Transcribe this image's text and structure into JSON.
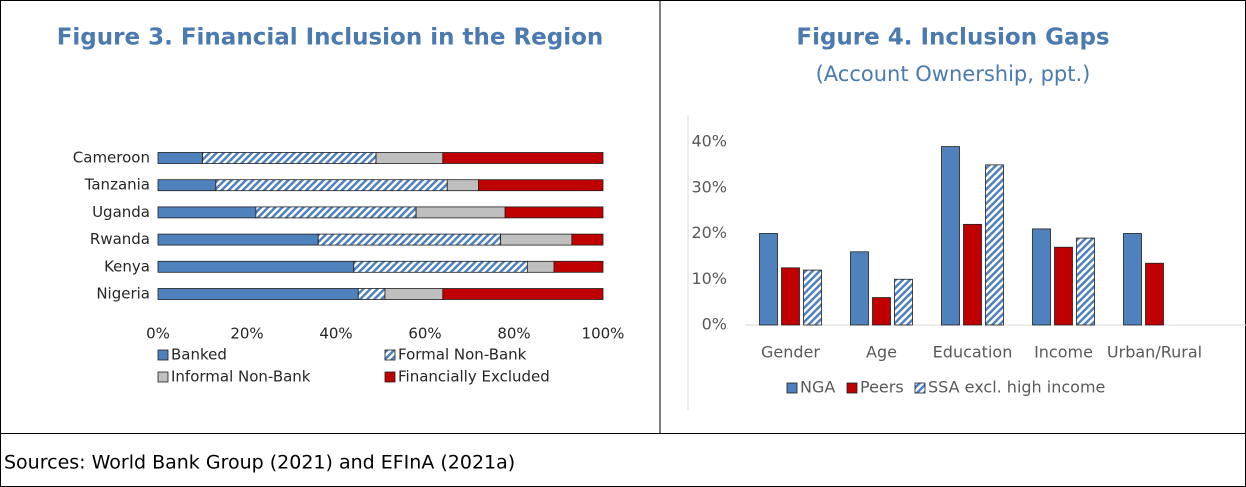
{
  "chart_data": [
    {
      "type": "stacked_barh",
      "title": "Figure 3. Financial Inclusion in the Region",
      "categories": [
        "Cameroon",
        "Tanzania",
        "Uganda",
        "Rwanda",
        "Kenya",
        "Nigeria"
      ],
      "series": [
        {
          "name": "Banked",
          "color": "#4f81bd",
          "values": [
            10,
            13,
            22,
            36,
            44,
            45
          ]
        },
        {
          "name": "Formal Non-Bank",
          "color": "#4f81bd",
          "pattern": "hatch",
          "values": [
            39,
            52,
            36,
            41,
            39,
            6
          ]
        },
        {
          "name": "Informal Non-Bank",
          "color": "#bfbfbf",
          "values": [
            15,
            7,
            20,
            16,
            6,
            13
          ]
        },
        {
          "name": "Financially Excluded",
          "color": "#c00000",
          "values": [
            36,
            28,
            22,
            7,
            11,
            36
          ]
        }
      ],
      "xlim": [
        0,
        100
      ],
      "xticks": [
        {
          "value": 0,
          "label": "0%"
        },
        {
          "value": 20,
          "label": "20%"
        },
        {
          "value": 40,
          "label": "40%"
        },
        {
          "value": 60,
          "label": "60%"
        },
        {
          "value": 80,
          "label": "80%"
        },
        {
          "value": 100,
          "label": "100%"
        }
      ],
      "legend": "bottom"
    },
    {
      "type": "bar",
      "title": "Figure 4. Inclusion Gaps",
      "subtitle": "(Account Ownership, ppt.)",
      "categories": [
        "Gender",
        "Age",
        "Education",
        "Income",
        "Urban/Rural"
      ],
      "series": [
        {
          "name": "NGA",
          "color": "#4f81bd",
          "values": [
            20,
            16,
            39,
            21,
            20
          ]
        },
        {
          "name": "Peers",
          "color": "#c00000",
          "values": [
            12.5,
            6,
            22,
            17,
            13.5
          ]
        },
        {
          "name": "SSA excl. high income",
          "color": "#4f81bd",
          "pattern": "hatch",
          "values": [
            12,
            10,
            35,
            19,
            null
          ]
        }
      ],
      "ylim": [
        0,
        40
      ],
      "yticks": [
        {
          "value": 0,
          "label": "0%"
        },
        {
          "value": 10,
          "label": "10%"
        },
        {
          "value": 20,
          "label": "20%"
        },
        {
          "value": 30,
          "label": "30%"
        },
        {
          "value": 40,
          "label": "40%"
        }
      ],
      "legend": "bottom"
    }
  ],
  "source": "Sources: World Bank Group (2021) and EFInA (2021a)"
}
